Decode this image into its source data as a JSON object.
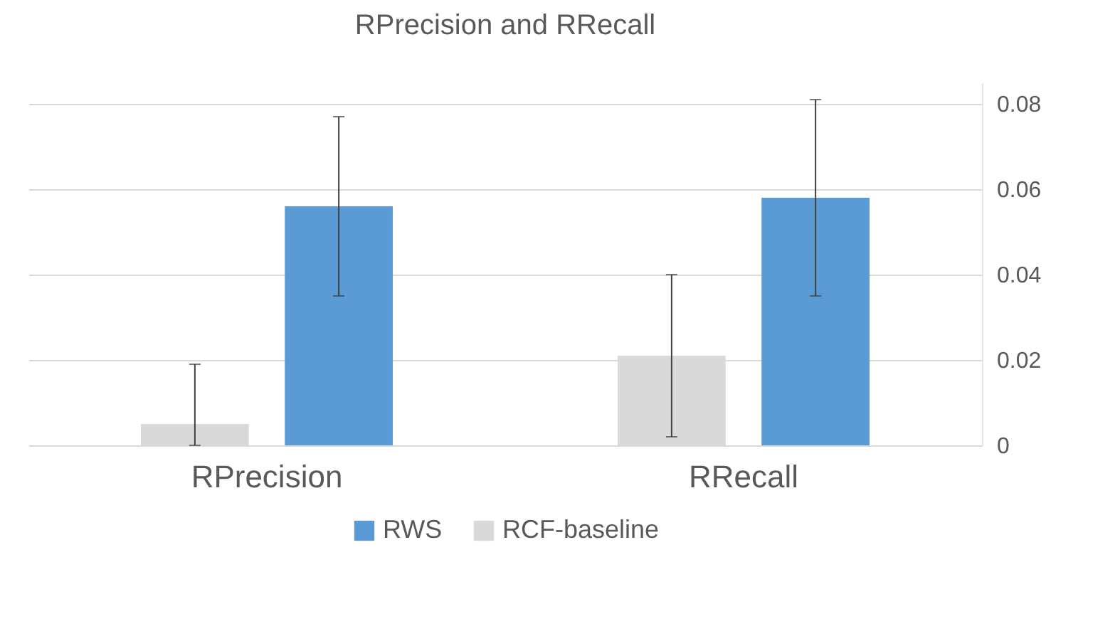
{
  "chart_data": {
    "type": "bar",
    "title": "RPrecision and RRecall",
    "categories": [
      "RPrecision",
      "RRecall"
    ],
    "series": [
      {
        "name": "RWS",
        "color": "#5b9bd5",
        "values": [
          0.056,
          0.058
        ],
        "errors": [
          [
            0.035,
            0.077
          ],
          [
            0.035,
            0.081
          ]
        ]
      },
      {
        "name": "RCF-baseline",
        "color": "#d9d9d9",
        "values": [
          0.005,
          0.021
        ],
        "errors": [
          [
            0,
            0.019
          ],
          [
            0.002,
            0.04
          ]
        ]
      }
    ],
    "ylim": [
      0,
      0.085
    ],
    "yticks": [
      {
        "value": 0,
        "label": "0"
      },
      0.02,
      0.04,
      0.06,
      0.08
    ],
    "grid": "y",
    "legend": "bottom"
  }
}
